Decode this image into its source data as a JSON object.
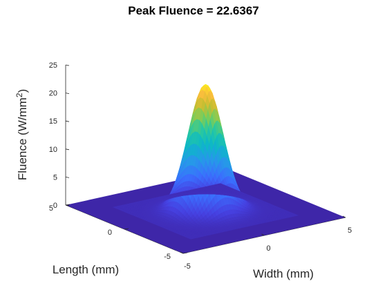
{
  "chart_data": {
    "type": "surface",
    "title": "Peak Fluence = 22.6367",
    "xlabel": "Width (mm)",
    "ylabel": "Length (mm)",
    "zlabel_base": "Fluence (W/mm",
    "zlabel_sup": "2",
    "zlabel_close": ")",
    "peak": 22.6367,
    "sigma_mm": 0.88,
    "xlim": [
      -5,
      5
    ],
    "ylim": [
      -5,
      5
    ],
    "zlim": [
      0,
      25
    ],
    "xticks": [
      -5,
      0,
      5
    ],
    "yticks": [
      -5,
      0,
      5
    ],
    "zticks": [
      0,
      5,
      10,
      15,
      20,
      25
    ],
    "colormap": "parula",
    "base_color": "#3e26a8",
    "grid": false
  }
}
